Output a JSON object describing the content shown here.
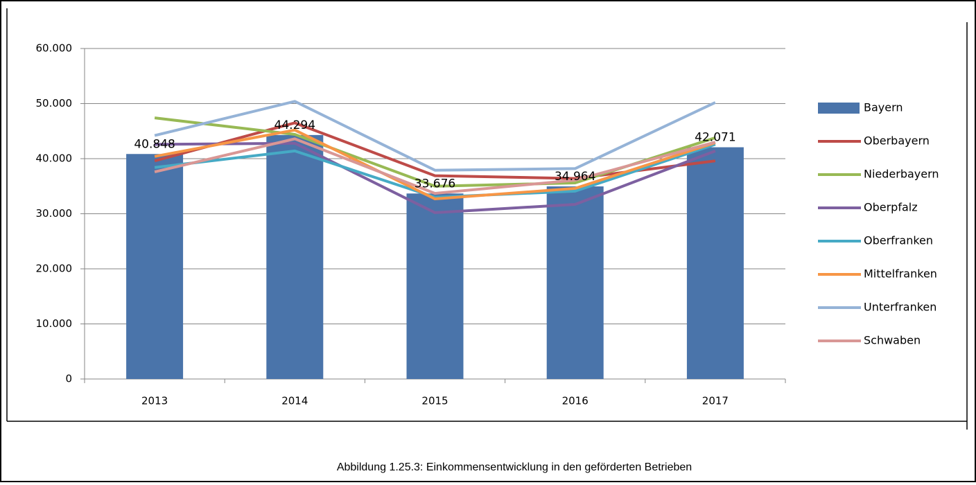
{
  "chart_data": {
    "type": "bar",
    "caption": "Abbildung 1.25.3: Einkommensentwicklung in den geförderten Betrieben",
    "categories": [
      "2013",
      "2014",
      "2015",
      "2016",
      "2017"
    ],
    "series": [
      {
        "name": "Bayern",
        "type": "bar",
        "color": "#4a74aa",
        "values": [
          40848,
          44294,
          33676,
          34964,
          42071
        ],
        "value_labels": [
          "40.848",
          "44.294",
          "33.676",
          "34.964",
          "42.071"
        ]
      },
      {
        "name": "Oberbayern",
        "type": "line",
        "color": "#be4b48",
        "values": [
          39600,
          46500,
          36900,
          36400,
          39600
        ]
      },
      {
        "name": "Niederbayern",
        "type": "line",
        "color": "#98b954",
        "values": [
          47400,
          44400,
          35000,
          35600,
          43800
        ]
      },
      {
        "name": "Oberpfalz",
        "type": "line",
        "color": "#7d60a0",
        "values": [
          42600,
          42800,
          30200,
          31700,
          41400
        ]
      },
      {
        "name": "Oberfranken",
        "type": "line",
        "color": "#46aac5",
        "values": [
          38400,
          41400,
          33000,
          34100,
          42600
        ]
      },
      {
        "name": "Mittelfranken",
        "type": "line",
        "color": "#f79646",
        "values": [
          40400,
          45200,
          32700,
          34600,
          42900
        ]
      },
      {
        "name": "Unterfranken",
        "type": "line",
        "color": "#95b3d7",
        "values": [
          44200,
          50400,
          37900,
          38200,
          50200
        ]
      },
      {
        "name": "Schwaben",
        "type": "line",
        "color": "#d99795",
        "values": [
          37600,
          43600,
          33700,
          36100,
          43000
        ]
      }
    ],
    "ylim": [
      0,
      60000
    ],
    "yticks": [
      0,
      {
        "value": 10000,
        "label": "10.000"
      },
      {
        "value": 20000,
        "label": "20.000"
      },
      {
        "value": 30000,
        "label": "30.000"
      },
      {
        "value": 40000,
        "label": "40.000"
      },
      {
        "value": 50000,
        "label": "50.000"
      },
      {
        "value": 60000,
        "label": "60.000"
      }
    ],
    "grid": true,
    "legend": "right"
  }
}
